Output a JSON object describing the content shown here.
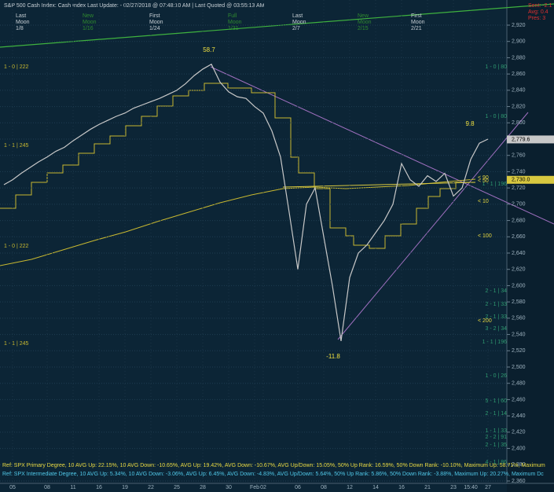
{
  "chart_data": {
    "type": "line",
    "title": "S&P 500 Cash Index:  Cash Index  Last Update:  - 02/27/2018 @ 07:48:10 AM | Last Quoted @ 03:55:13 AM",
    "moon_phases": [
      [
        "Last",
        "Moon",
        "1/8"
      ],
      [
        "New",
        "Moon",
        "1/16"
      ],
      [
        "First",
        "Moon",
        "1/24"
      ],
      [
        "Full",
        "Moon",
        "1/31"
      ],
      [
        "Last",
        "Moon",
        "2/7"
      ],
      [
        "New",
        "Moon",
        "2/15"
      ],
      [
        "First",
        "Moon",
        "2/21"
      ]
    ],
    "status": [
      "Sent: -2.1",
      "Avg: 0.4",
      "Pres: 3"
    ],
    "categories": [
      null,
      "05",
      null,
      null,
      null,
      "08",
      null,
      null,
      "11",
      null,
      null,
      "16",
      null,
      null,
      "19",
      null,
      null,
      "22",
      null,
      null,
      "25",
      null,
      null,
      "28",
      null,
      null,
      "30",
      null,
      null,
      "Feb",
      "02",
      null,
      null,
      null,
      "06",
      null,
      null,
      "08",
      null,
      null,
      "12",
      null,
      null,
      "14",
      null,
      null,
      "16",
      null,
      null,
      "21",
      null,
      null,
      "23",
      null,
      "15:40",
      null,
      "27"
    ],
    "values": [
      2724,
      2730,
      2738,
      2745,
      2752,
      2758,
      2765,
      2770,
      2778,
      2785,
      2792,
      2798,
      2803,
      2808,
      2812,
      2818,
      2822,
      2826,
      2830,
      2835,
      2840,
      2848,
      2858,
      2866,
      2872,
      2850,
      2838,
      2832,
      2830,
      2820,
      2812,
      2790,
      2758,
      2690,
      2620,
      2700,
      2720,
      2660,
      2600,
      2532,
      2610,
      2640,
      2650,
      2665,
      2680,
      2700,
      2750,
      2730,
      2722,
      2735,
      2728,
      2738,
      2710,
      2720,
      2755,
      2775,
      2780
    ],
    "color": "#c8c8c8",
    "ylim": [
      2352,
      2930
    ],
    "yticks": [
      {
        "value": 2360,
        "label": "2,360"
      },
      {
        "value": 2380,
        "label": "2,380"
      },
      {
        "value": 2400,
        "label": "2,400"
      },
      {
        "value": 2420,
        "label": "2,420"
      },
      {
        "value": 2440,
        "label": "2,440"
      },
      {
        "value": 2460,
        "label": "2,460"
      },
      {
        "value": 2480,
        "label": "2,480"
      },
      {
        "value": 2500,
        "label": "2,500"
      },
      {
        "value": 2520,
        "label": "2,520"
      },
      {
        "value": 2540,
        "label": "2,540"
      },
      {
        "value": 2560,
        "label": "2,560"
      },
      {
        "value": 2580,
        "label": "2,580"
      },
      {
        "value": 2600,
        "label": "2,600"
      },
      {
        "value": 2620,
        "label": "2,620"
      },
      {
        "value": 2640,
        "label": "2,640"
      },
      {
        "value": 2660,
        "label": "2,660"
      },
      {
        "value": 2680,
        "label": "2,680"
      },
      {
        "value": 2700,
        "label": "2,700"
      },
      {
        "value": 2720,
        "label": "2,720"
      },
      {
        "value": 2740,
        "label": "2,740"
      },
      {
        "value": 2760,
        "label": "2,760"
      },
      {
        "value": 2780,
        "label": "2,780"
      },
      {
        "value": 2800,
        "label": "2,800"
      },
      {
        "value": 2820,
        "label": "2,820"
      },
      {
        "value": 2840,
        "label": "2,840"
      },
      {
        "value": 2860,
        "label": "2,860"
      },
      {
        "value": 2880,
        "label": "2,880"
      },
      {
        "value": 2900,
        "label": "2,900"
      },
      {
        "value": 2920,
        "label": "2,920"
      }
    ],
    "grid": true,
    "price_tags": [
      {
        "value": 2779.6,
        "label": "2,779.6"
      },
      {
        "value": 2730,
        "label": "2,730.0"
      }
    ],
    "annotations": [
      "58.7",
      "9.8",
      "-11.8"
    ],
    "left_levels": [
      "1 - 0 | 222",
      "1 - 1 | 245",
      "1 - 0 | 222",
      "1 - 1 | 245"
    ],
    "right_levels": [
      "1 - 0 | 80",
      "1 - 0 | 80",
      "1 - 1 | 196",
      "< 90",
      "< 50",
      "< 10",
      "< 100",
      "2 - 1 | 34",
      "2 - 1 | 33",
      "2 - 1 | 33",
      "< 200",
      "3 - 2 | 34",
      "1 - 1 | 196",
      "1 - 0 | 26",
      "5 - 1 | 60",
      "2 - 1 | 14",
      "1 - 1 | 33",
      "2 - 2 | 91",
      "2 - 1 | 35",
      "4 - 1 | 86"
    ],
    "footer": [
      "Ref: SPX Primary Degree, 10 AVG Up: 22.15%, 10 AVG Down: -10.65%, AVG Up: 19.42%, AVG Down: -10.67%, AVG Up/Down: 15.05%, 50%  Up Rank: 16.59%, 50% Down Rank: -10.10%, Maximum Up: 58.71%, Maximum",
      "Ref: SPX Intermediate Degree, 10 AVG Up: 5.34%, 10 AVG Down: -3.06%, AVG Up: 6.45%, AVG Down: -4.83%, AVG Up/Down: 5.64%, 50%  Up Rank: 5.86%, 50% Down Rank: -3.88%, Maximum Up: 20.27%, Maximum Dc"
    ]
  }
}
